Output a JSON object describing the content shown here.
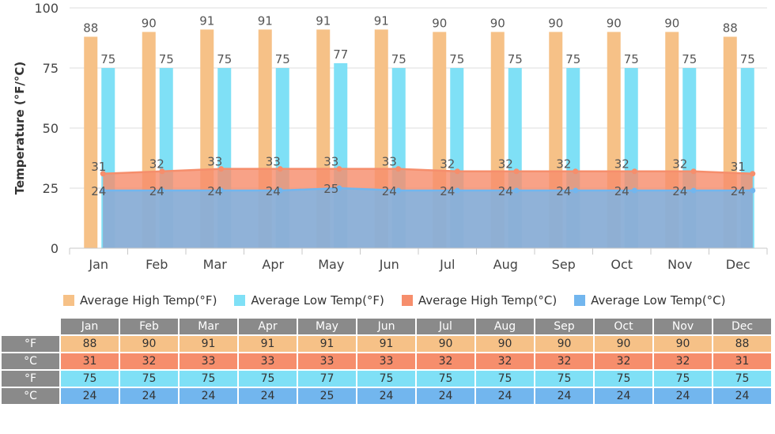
{
  "chart_data": {
    "type": "bar",
    "ylabel": "Temperature (°F/°C)",
    "ylim": [
      0,
      100
    ],
    "yticks": [
      0,
      25,
      50,
      75,
      100
    ],
    "categories": [
      "Jan",
      "Feb",
      "Mar",
      "Apr",
      "May",
      "Jun",
      "Jul",
      "Aug",
      "Sep",
      "Oct",
      "Nov",
      "Dec"
    ],
    "series": [
      {
        "name": "Average High Temp(°F)",
        "kind": "bar",
        "color": "#f6c187",
        "values": [
          88,
          90,
          91,
          91,
          91,
          91,
          90,
          90,
          90,
          90,
          90,
          88
        ]
      },
      {
        "name": "Average Low Temp(°F)",
        "kind": "bar",
        "color": "#7fe0f6",
        "values": [
          75,
          75,
          75,
          75,
          77,
          75,
          75,
          75,
          75,
          75,
          75,
          75
        ]
      },
      {
        "name": "Average High Temp(°C)",
        "kind": "area",
        "color": "#f68e6c",
        "values": [
          31,
          32,
          33,
          33,
          33,
          33,
          32,
          32,
          32,
          32,
          32,
          31
        ]
      },
      {
        "name": "Average Low Temp(°C)",
        "kind": "area",
        "color": "#72b6ee",
        "values": [
          24,
          24,
          24,
          24,
          25,
          24,
          24,
          24,
          24,
          24,
          24,
          24
        ]
      }
    ],
    "legend_position": "bottom",
    "grid": true
  },
  "table": {
    "row_labels": [
      "°F",
      "°C",
      "°F",
      "°C"
    ]
  }
}
